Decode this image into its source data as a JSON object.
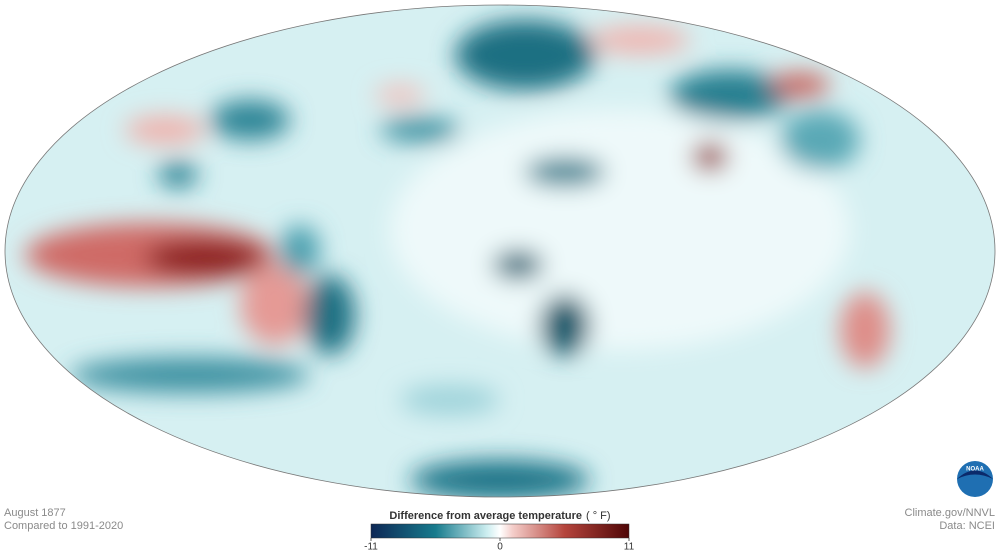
{
  "map": {
    "date": "August 1877",
    "baseline": "Compared to 1991-2020",
    "credit": "Climate.gov/NNVL",
    "source": "Data: NCEI",
    "logo": "NOAA"
  },
  "legend": {
    "title": "Difference from average temperature",
    "unit": "( ° F)",
    "min": -11,
    "max": 11,
    "ticks": [
      -11,
      0,
      11
    ]
  }
}
